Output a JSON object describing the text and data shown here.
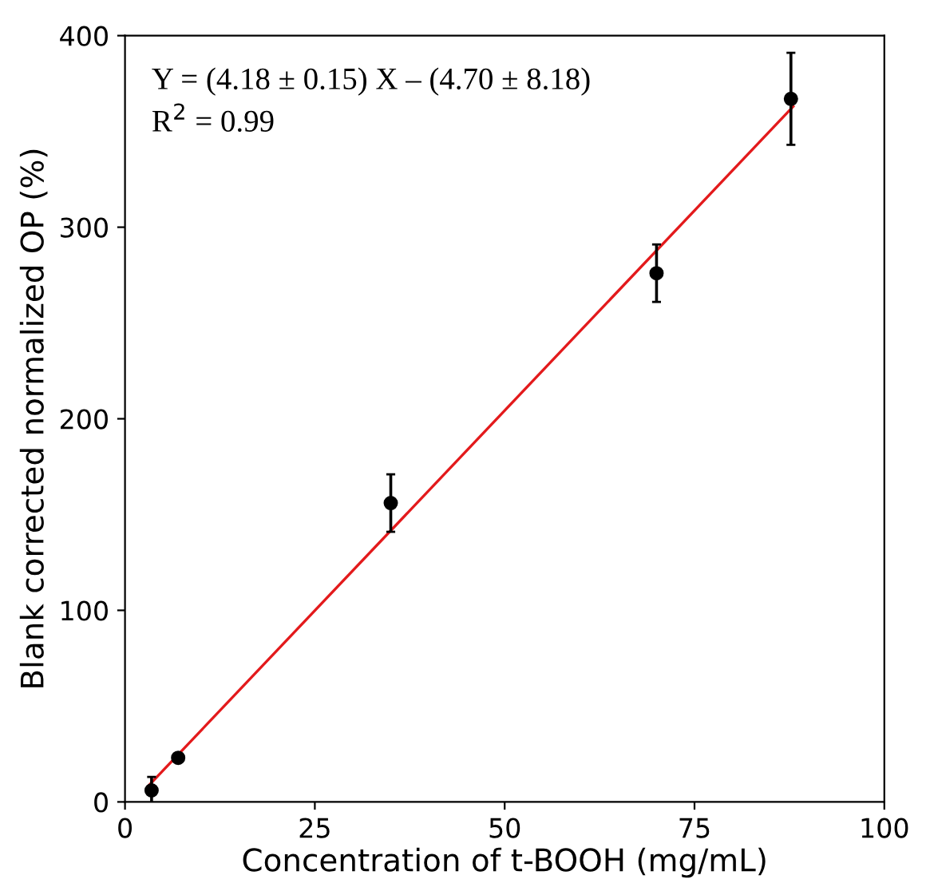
{
  "chart_data": {
    "type": "scatter",
    "xlabel": "Concentration of t-BOOH (mg/mL)",
    "ylabel": "Blank corrected normalized OP (%)",
    "xlim": [
      0,
      100
    ],
    "ylim": [
      0,
      400
    ],
    "xticks": [
      0,
      25,
      50,
      75,
      100
    ],
    "yticks": [
      0,
      100,
      200,
      300,
      400
    ],
    "grid": false,
    "legend": false,
    "annotations": [
      "Y = (4.18 ± 0.15) X – (4.70 ± 8.18)",
      "R$^{2}$ = 0.99"
    ],
    "series": [
      {
        "color": "#000000",
        "marker": "circle",
        "x": [
          3.5,
          7,
          35,
          70,
          87.7
        ],
        "values": [
          6,
          23,
          156,
          276,
          367
        ],
        "errors": [
          7,
          null,
          15,
          15,
          24
        ]
      },
      {
        "type": "line",
        "color": "#e31a1c",
        "marker": "none",
        "line_style": "solid",
        "x": [
          3,
          88
        ],
        "values": [
          8,
          363
        ]
      }
    ]
  }
}
